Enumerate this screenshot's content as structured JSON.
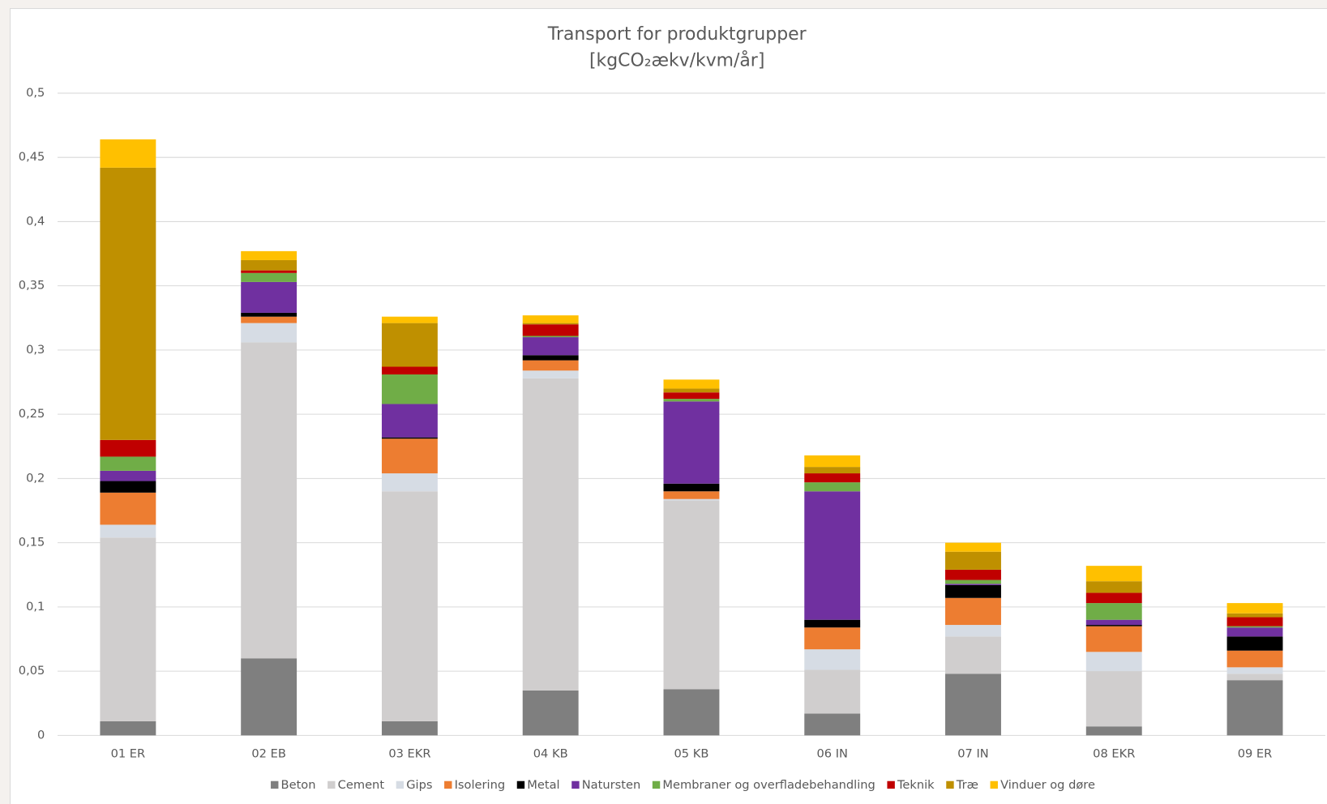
{
  "chart_data": {
    "type": "stacked_bar",
    "title": "Transport  for produktgrupper",
    "subtitle": "[kgCO₂ækv/kvm/år]",
    "categories": [
      "01 ER",
      "02 EB",
      "03 EKR",
      "04 KB",
      "05 KB",
      "06 IN",
      "07 IN",
      "08 EKR",
      "09 ER"
    ],
    "series": [
      {
        "name": "Beton",
        "color": "#7f7f7f",
        "values": [
          0.011,
          0.06,
          0.011,
          0.035,
          0.036,
          0.017,
          0.048,
          0.007,
          0.043
        ]
      },
      {
        "name": "Cement",
        "color": "#d0cece",
        "values": [
          0.143,
          0.246,
          0.179,
          0.243,
          0.147,
          0.034,
          0.029,
          0.043,
          0.005
        ]
      },
      {
        "name": "Gips",
        "color": "#d6dce4",
        "values": [
          0.01,
          0.015,
          0.014,
          0.006,
          0.001,
          0.016,
          0.009,
          0.015,
          0.005
        ]
      },
      {
        "name": "Isolering",
        "color": "#ed7d31",
        "values": [
          0.025,
          0.005,
          0.027,
          0.008,
          0.006,
          0.017,
          0.021,
          0.02,
          0.013
        ]
      },
      {
        "name": "Metal",
        "color": "#000000",
        "values": [
          0.009,
          0.003,
          0.001,
          0.004,
          0.006,
          0.006,
          0.01,
          0.001,
          0.011
        ]
      },
      {
        "name": "Natursten",
        "color": "#7030a0",
        "values": [
          0.008,
          0.024,
          0.026,
          0.014,
          0.064,
          0.1,
          0.001,
          0.004,
          0.007
        ]
      },
      {
        "name": "Membraner og overfladebehandling",
        "color": "#70ad47",
        "values": [
          0.011,
          0.007,
          0.023,
          0.001,
          0.002,
          0.007,
          0.003,
          0.013,
          0.001
        ]
      },
      {
        "name": "Teknik",
        "color": "#c00000",
        "values": [
          0.013,
          0.002,
          0.006,
          0.009,
          0.005,
          0.007,
          0.008,
          0.008,
          0.007
        ]
      },
      {
        "name": "Træ",
        "color": "#bf9000",
        "values": [
          0.212,
          0.008,
          0.034,
          0.001,
          0.003,
          0.005,
          0.014,
          0.009,
          0.003
        ]
      },
      {
        "name": "Vinduer og døre",
        "color": "#ffc000",
        "values": [
          0.022,
          0.007,
          0.005,
          0.006,
          0.007,
          0.009,
          0.007,
          0.012,
          0.008
        ]
      }
    ],
    "ylim": [
      0,
      0.5
    ],
    "yticks": [
      0,
      {
        "value": 0.05,
        "label": "0,05"
      },
      {
        "value": 0.1,
        "label": "0,1"
      },
      {
        "value": 0.15,
        "label": "0,15"
      },
      {
        "value": 0.2,
        "label": "0,2"
      },
      {
        "value": 0.25,
        "label": "0,25"
      },
      {
        "value": 0.3,
        "label": "0,3"
      },
      {
        "value": 0.35,
        "label": "0,35"
      },
      {
        "value": 0.4,
        "label": "0,4"
      },
      {
        "value": 0.45,
        "label": "0,45"
      },
      {
        "value": 0.5,
        "label": "0,5"
      }
    ],
    "grid": true,
    "legend": "bottom"
  }
}
